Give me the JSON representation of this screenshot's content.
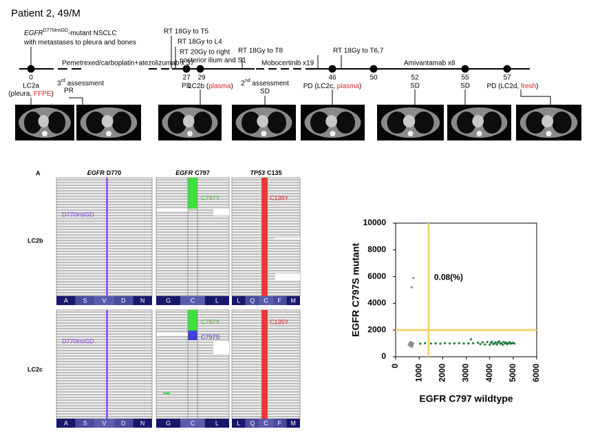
{
  "header": {
    "title": "Patient 2, 49/M"
  },
  "timeline": {
    "diagnosis": {
      "gene": "EGFR",
      "mutation": "D770insGD",
      "line1_rest": "-mutant NSCLC",
      "line2": "with metastases to pleura and bones"
    },
    "treatments": [
      "Pemetrexed/carboplatin+atezolizumab x 37",
      "Mobocertinib x19",
      "Amivantamab x8"
    ],
    "radiotherapy": [
      "RT 18Gy to T5",
      "RT 18Gy to L4",
      "RT 20Gy to right",
      "posterior ilium and S1",
      "RT 18Gy to T8",
      "RT 18Gy to T6,7"
    ],
    "timepoints": [
      "0",
      "27",
      "29",
      "46",
      "50",
      "52",
      "55",
      "57"
    ],
    "labels": {
      "lc2a": [
        "LC2a",
        "(pleura, ",
        "FFPE",
        ")"
      ],
      "assessment3": [
        "3",
        "rd",
        " assessment",
        "PR"
      ],
      "pd27": "PD",
      "lc2b": [
        "LC2b (",
        "plasma",
        ")"
      ],
      "assessment2": [
        "2",
        "nd",
        " assessment",
        "SD"
      ],
      "pd46": [
        "PD (LC2c, ",
        "plasma",
        ")"
      ],
      "sd52": "SD",
      "sd55": "SD",
      "pd57": [
        "PD (LC2d, ",
        "fresh",
        ")"
      ]
    }
  },
  "igv": {
    "panel_label": "A",
    "columns": [
      {
        "gene": "EGFR",
        "position": "D770",
        "residues": [
          "A",
          "S",
          "V",
          "D",
          "N"
        ]
      },
      {
        "gene": "EGFR",
        "position": "C797",
        "residues": [
          "G",
          "C",
          "L"
        ]
      },
      {
        "gene": "TP53",
        "position": "C135",
        "residues": [
          "L",
          "Q",
          "C",
          "F",
          "M"
        ]
      }
    ],
    "samples": [
      {
        "name": "LC2b",
        "variants": [
          "D770insGD",
          "C797Y",
          "C135Y"
        ]
      },
      {
        "name": "LC2c",
        "variants": [
          "D770insGD",
          "C797Y",
          "C797S",
          "C135Y"
        ]
      }
    ]
  },
  "chart_data": {
    "type": "scatter",
    "annotation": "0.08(%)",
    "xlabel": "EGFR C797 wildtype",
    "ylabel": "EGFR C797S mutant",
    "xlim": [
      0,
      6000
    ],
    "ylim": [
      0,
      10000
    ],
    "xticks": [
      0,
      1000,
      2000,
      3000,
      4000,
      5000,
      6000
    ],
    "yticks": [
      0,
      2000,
      4000,
      6000,
      8000,
      10000
    ],
    "gate": {
      "x": 1400,
      "y": 2000,
      "color": "#f5d36b"
    },
    "series": [
      {
        "color": "#8c8c8c",
        "x": [
          560,
          600,
          620,
          650,
          680,
          700,
          720,
          640,
          590,
          700,
          740,
          610,
          760,
          680
        ],
        "values": [
          900,
          1000,
          800,
          950,
          1050,
          850,
          900,
          1100,
          950,
          750,
          1000,
          1050,
          5900,
          5200
        ]
      },
      {
        "color": "#1f7a3a",
        "x": [
          1050,
          1250,
          1500,
          1700,
          1900,
          2100,
          2300,
          2500,
          2700,
          2900,
          3100,
          3300,
          3500,
          3600,
          3700,
          3800,
          3900,
          4000,
          4050,
          4100,
          4150,
          4200,
          4250,
          4300,
          4350,
          4400,
          4450,
          4500,
          4550,
          4600,
          4650,
          4700,
          4750,
          4800,
          4850,
          4900,
          4950,
          5000,
          5050,
          3200
        ],
        "values": [
          980,
          1010,
          990,
          1000,
          980,
          1010,
          990,
          1000,
          1020,
          990,
          1000,
          1010,
          1050,
          950,
          1080,
          920,
          1100,
          900,
          1050,
          1120,
          950,
          1000,
          1080,
          920,
          1060,
          1150,
          980,
          1030,
          900,
          1100,
          1000,
          1060,
          950,
          1020,
          1090,
          980,
          1010,
          1040,
          990,
          1300
        ]
      }
    ]
  }
}
